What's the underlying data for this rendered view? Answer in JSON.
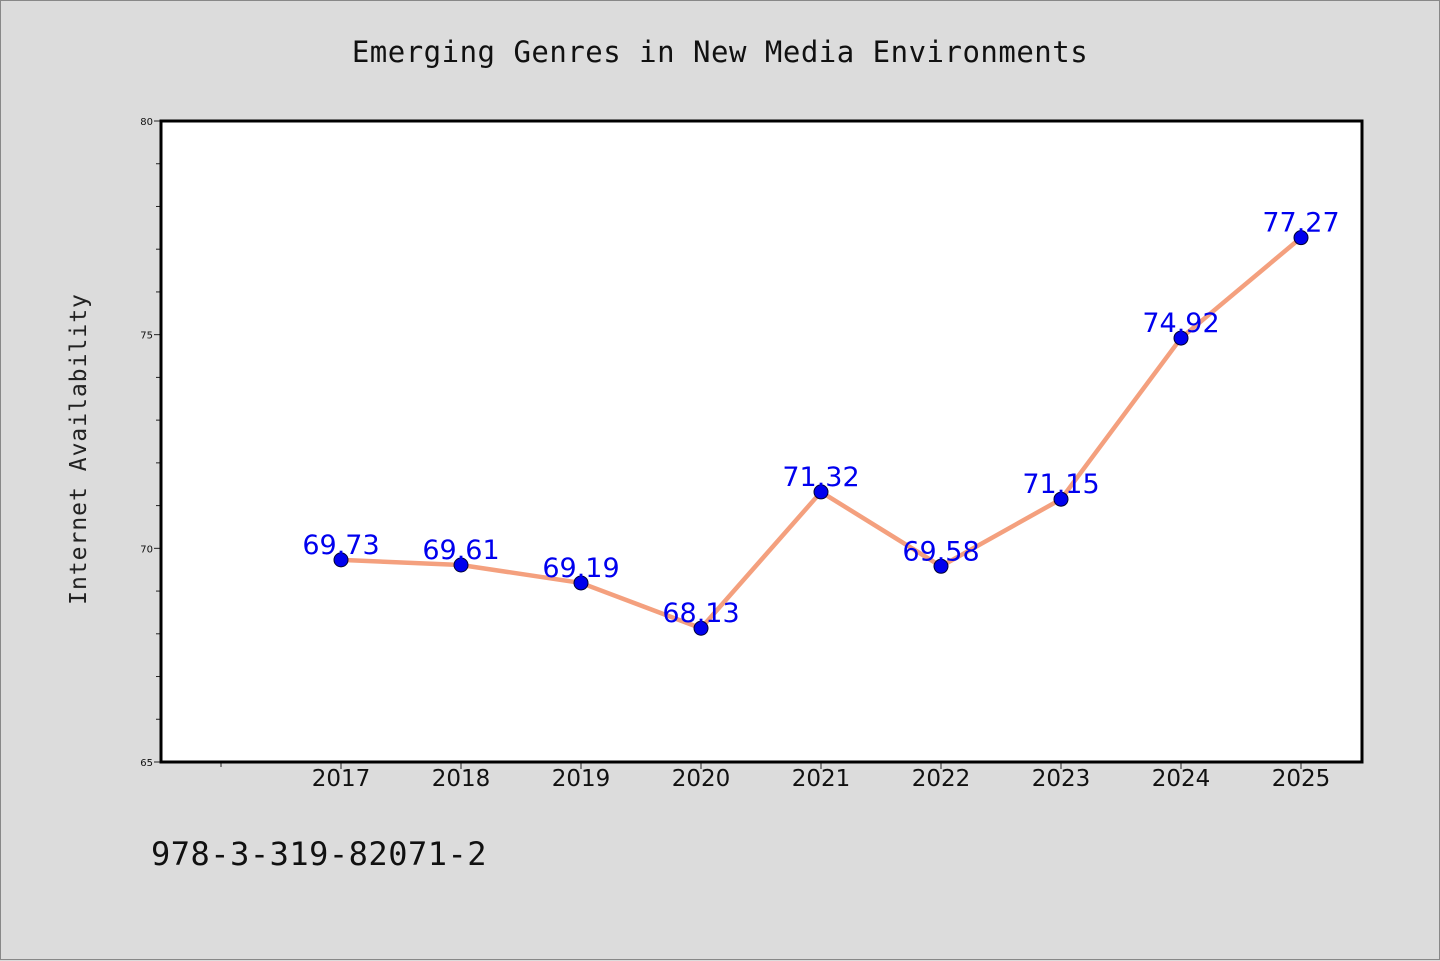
{
  "title": "Emerging Genres in New Media Environments",
  "footnote": "978-3-319-82071-2",
  "chart_data": {
    "type": "line",
    "title": "Emerging Genres in New Media Environments",
    "xlabel": "",
    "ylabel": "Internet Availability",
    "categories": [
      "2017",
      "2018",
      "2019",
      "2020",
      "2021",
      "2022",
      "2023",
      "2024",
      "2025"
    ],
    "series": [
      {
        "values": [
          69.73,
          69.61,
          69.19,
          68.13,
          71.32,
          69.58,
          71.15,
          74.92,
          77.27
        ],
        "line_color": "#f4a07e",
        "marker_color": "#0000ee"
      }
    ],
    "data_labels": [
      "69.73",
      "69.61",
      "69.19",
      "68.13",
      "71.32",
      "69.58",
      "71.15",
      "74.92",
      "77.27"
    ],
    "ylim": [
      65,
      80
    ],
    "yticks": [
      "65",
      "70",
      "75",
      "80"
    ],
    "grid": false,
    "legend": "none"
  }
}
